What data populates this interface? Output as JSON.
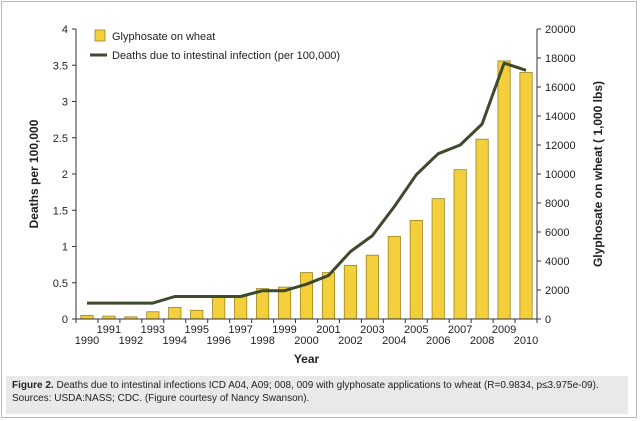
{
  "chart_data": {
    "type": "bar",
    "x": [
      1990,
      1991,
      1992,
      1993,
      1994,
      1995,
      1996,
      1997,
      1998,
      1999,
      2000,
      2001,
      2002,
      2003,
      2004,
      2005,
      2006,
      2007,
      2008,
      2009,
      2010
    ],
    "x_tick_labels_lower": [
      "1990",
      "1992",
      "1994",
      "1996",
      "1998",
      "2000",
      "2002",
      "2004",
      "2006",
      "2008",
      "2010"
    ],
    "x_tick_labels_upper": [
      "1991",
      "1993",
      "1995",
      "1997",
      "1999",
      "2001",
      "2003",
      "2005",
      "2007",
      "2009"
    ],
    "xlabel": "Year",
    "ylabel_left": "Deaths per 100,000",
    "ylabel_right": "Glyphosate on wheat ( 1,000 lbs)",
    "ylim_left": [
      0,
      4
    ],
    "ylim_right": [
      0,
      20000
    ],
    "yticks_left": [
      "0",
      "0.5",
      "1",
      "1.5",
      "2",
      "2.5",
      "3",
      "3.5",
      "4"
    ],
    "yticks_right": [
      "0",
      "2000",
      "4000",
      "6000",
      "8000",
      "10000",
      "12000",
      "14000",
      "16000",
      "18000",
      "20000"
    ],
    "grid": false,
    "legend_placement": "top-left",
    "series": [
      {
        "name": "Glyphosate on wheat",
        "kind": "bar",
        "axis": "right",
        "color": "#f3cf3c",
        "edge_color": "#9c8420",
        "values": [
          250,
          200,
          150,
          500,
          800,
          600,
          1500,
          1600,
          2100,
          2200,
          3200,
          3200,
          3700,
          4400,
          5700,
          6800,
          8300,
          10300,
          12400,
          17800,
          17000
        ]
      },
      {
        "name": "Deaths due to intestinal infection (per 100,000)",
        "kind": "line",
        "axis": "left",
        "color": "#3d4a2c",
        "values": [
          0.22,
          0.22,
          0.22,
          0.22,
          0.31,
          0.31,
          0.31,
          0.31,
          0.39,
          0.39,
          0.48,
          0.6,
          0.93,
          1.15,
          1.55,
          1.99,
          2.28,
          2.4,
          2.69,
          3.53,
          3.43
        ]
      }
    ]
  },
  "caption": {
    "label": "Figure 2.",
    "text": " Deaths due to intestinal infections ICD A04, A09; 008, 009 with glyphosate applications to wheat (R=0.9834, p≤3.975e-09). Sources: USDA:NASS; CDC. (Figure courtesy of Nancy Swanson)."
  }
}
